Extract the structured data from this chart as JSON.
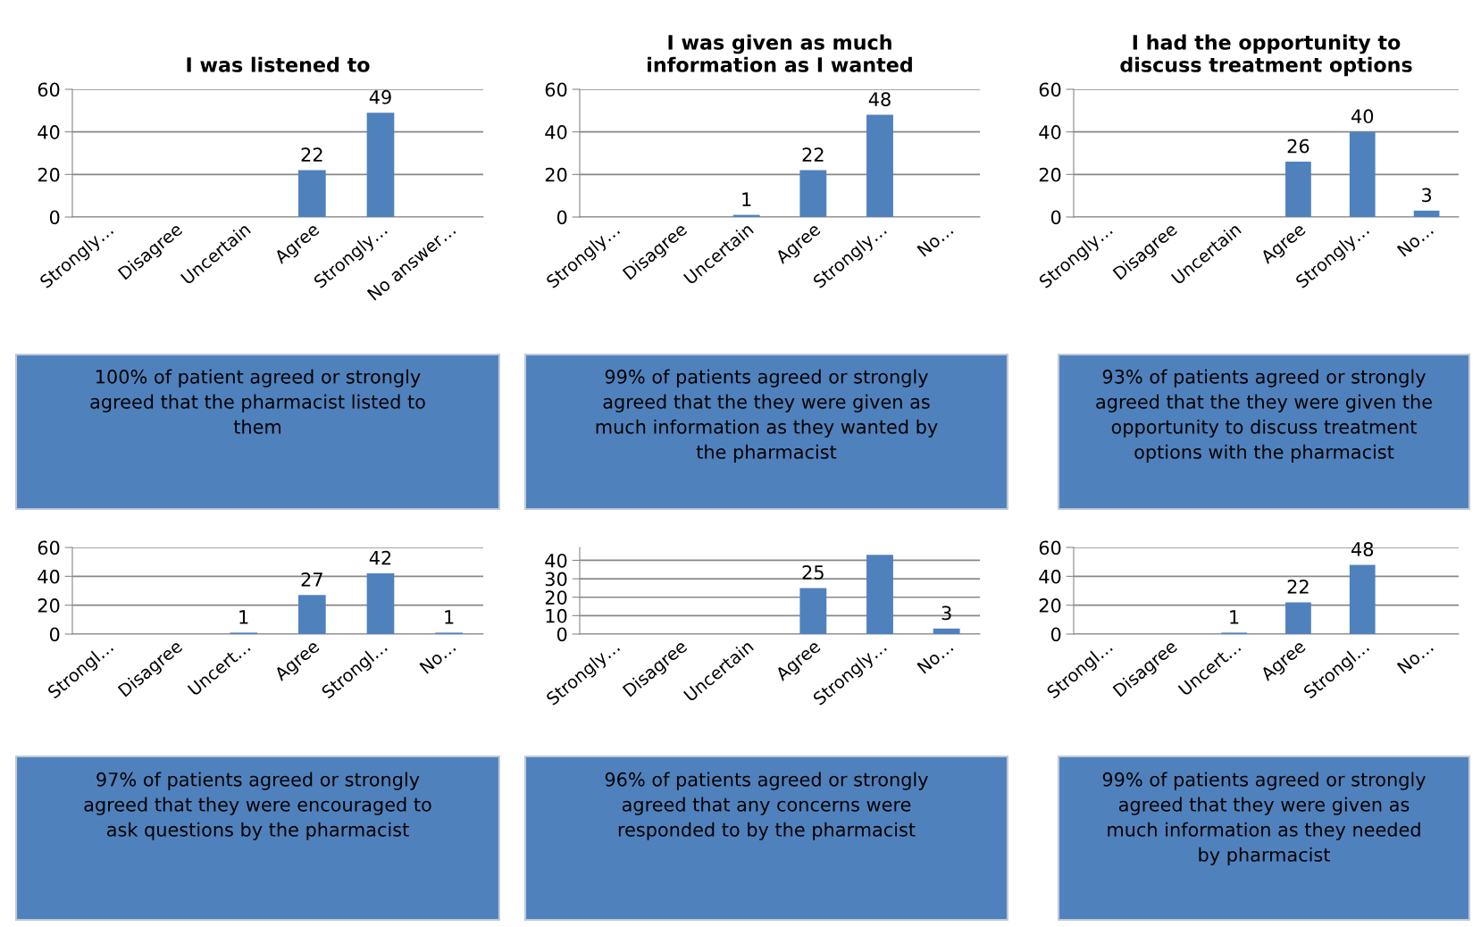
{
  "chart_data": [
    {
      "type": "bar",
      "title": "I was listened to",
      "categories": [
        "Strongly…",
        "Disagree",
        "Uncertain",
        "Agree",
        "Strongly…",
        "No answer…"
      ],
      "values": [
        null,
        null,
        null,
        22,
        49,
        null
      ],
      "color": "#4f81bd",
      "ylim": [
        0,
        60
      ],
      "yticks": [
        0,
        20,
        40,
        60
      ],
      "grid": "y",
      "data_labels": true,
      "annotations": [
        "100% of patient agreed or strongly\nagreed that the pharmacist listed to\nthem"
      ]
    },
    {
      "type": "bar",
      "title": "I was given as much\ninformation as I wanted",
      "categories": [
        "Strongly…",
        "Disagree",
        "Uncertain",
        "Agree",
        "Strongly…",
        "No…"
      ],
      "values": [
        null,
        null,
        1,
        22,
        48,
        null
      ],
      "color": "#4f81bd",
      "ylim": [
        0,
        60
      ],
      "yticks": [
        0,
        20,
        40,
        60
      ],
      "grid": "y",
      "data_labels": true,
      "annotations": [
        "99% of patients agreed or strongly\nagreed that the they were given as\nmuch information as they wanted by\nthe pharmacist"
      ]
    },
    {
      "type": "bar",
      "title": "I had the opportunity to\ndiscuss treatment options",
      "categories": [
        "Strongly…",
        "Disagree",
        "Uncertain",
        "Agree",
        "Strongly…",
        "No…"
      ],
      "values": [
        null,
        null,
        null,
        26,
        40,
        3
      ],
      "color": "#4f81bd",
      "ylim": [
        0,
        60
      ],
      "yticks": [
        0,
        20,
        40,
        60
      ],
      "grid": "y",
      "data_labels": true,
      "annotations": [
        "93% of patients agreed or strongly\nagreed that the they were given the\nopportunity to discuss treatment\noptions with the pharmacist"
      ]
    },
    {
      "type": "bar",
      "categories": [
        "Strongl…",
        "Disagree",
        "Uncert…",
        "Agree",
        "Strongl…",
        "No…"
      ],
      "values": [
        null,
        null,
        1,
        27,
        42,
        1
      ],
      "color": "#4f81bd",
      "ylim": [
        0,
        60
      ],
      "yticks": [
        0,
        20,
        40,
        60
      ],
      "grid": "y",
      "data_labels": true,
      "annotations": [
        "97% of patients agreed or strongly\nagreed that they were encouraged to\nask questions by the pharmacist"
      ]
    },
    {
      "type": "bar",
      "categories": [
        "Strongly…",
        "Disagree",
        "Uncertain",
        "Agree",
        "Strongly…",
        "No…"
      ],
      "values": [
        null,
        null,
        null,
        25,
        43,
        3
      ],
      "value_labels": [
        null,
        null,
        null,
        "25",
        null,
        "3"
      ],
      "color": "#4f81bd",
      "ylim": [
        0,
        47
      ],
      "yticks": [
        0,
        10,
        20,
        30,
        40
      ],
      "grid": "y",
      "annotations": [
        "96% of patients agreed or strongly\nagreed that any concerns were\nresponded to by the pharmacist"
      ]
    },
    {
      "type": "bar",
      "categories": [
        "Strongl…",
        "Disagree",
        "Uncert…",
        "Agree",
        "Strongl…",
        "No…"
      ],
      "values": [
        null,
        null,
        1,
        22,
        48,
        null
      ],
      "color": "#4f81bd",
      "ylim": [
        0,
        60
      ],
      "yticks": [
        0,
        20,
        40,
        60
      ],
      "grid": "y",
      "data_labels": true,
      "annotations": [
        "99% of patients agreed or strongly\nagreed that they were given as\nmuch information as they needed\nby pharmacist"
      ]
    }
  ]
}
